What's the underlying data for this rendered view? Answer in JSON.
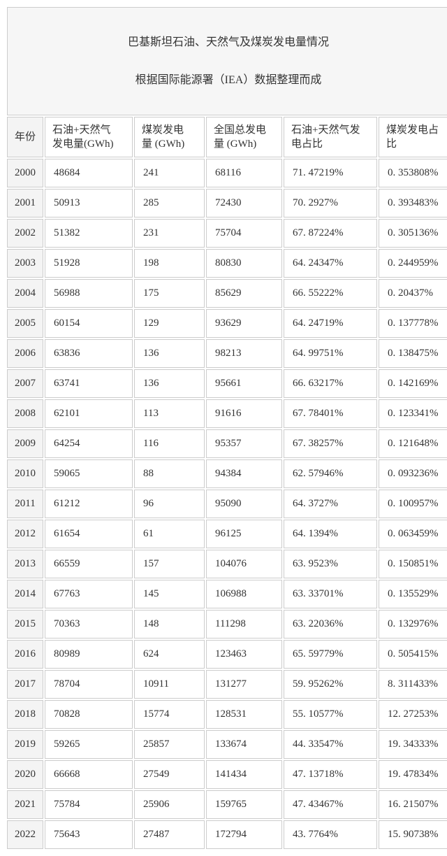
{
  "chart_data": {
    "type": "table",
    "title": "巴基斯坦石油、天然气及煤炭发电量情况",
    "subtitle": "根据国际能源署（IEA）数据整理而成",
    "columns": [
      "年份",
      "石油+天然气\n发电量(GWh)",
      "煤炭发电\n量 (GWh)",
      "全国总发电\n量 (GWh)",
      "石油+天然气发\n电占比",
      "煤炭发电占\n比"
    ],
    "rows": [
      [
        "2000",
        "48684",
        "241",
        "68116",
        "71. 47219%",
        "0. 353808%"
      ],
      [
        "2001",
        "50913",
        "285",
        "72430",
        "70. 2927%",
        "0. 393483%"
      ],
      [
        "2002",
        "51382",
        "231",
        "75704",
        "67. 87224%",
        "0. 305136%"
      ],
      [
        "2003",
        "51928",
        "198",
        "80830",
        "64. 24347%",
        "0. 244959%"
      ],
      [
        "2004",
        "56988",
        "175",
        "85629",
        "66. 55222%",
        "0. 20437%"
      ],
      [
        "2005",
        "60154",
        "129",
        "93629",
        "64. 24719%",
        "0. 137778%"
      ],
      [
        "2006",
        "63836",
        "136",
        "98213",
        "64. 99751%",
        "0. 138475%"
      ],
      [
        "2007",
        "63741",
        "136",
        "95661",
        "66. 63217%",
        "0. 142169%"
      ],
      [
        "2008",
        "62101",
        "113",
        "91616",
        "67. 78401%",
        "0. 123341%"
      ],
      [
        "2009",
        "64254",
        "116",
        "95357",
        "67. 38257%",
        "0. 121648%"
      ],
      [
        "2010",
        "59065",
        "88",
        "94384",
        "62. 57946%",
        "0. 093236%"
      ],
      [
        "2011",
        "61212",
        "96",
        "95090",
        "64. 3727%",
        "0. 100957%"
      ],
      [
        "2012",
        "61654",
        "61",
        "96125",
        "64. 1394%",
        "0. 063459%"
      ],
      [
        "2013",
        "66559",
        "157",
        "104076",
        "63. 9523%",
        "0. 150851%"
      ],
      [
        "2014",
        "67763",
        "145",
        "106988",
        "63. 33701%",
        "0. 135529%"
      ],
      [
        "2015",
        "70363",
        "148",
        "111298",
        "63. 22036%",
        "0. 132976%"
      ],
      [
        "2016",
        "80989",
        "624",
        "123463",
        "65. 59779%",
        "0. 505415%"
      ],
      [
        "2017",
        "78704",
        "10911",
        "131277",
        "59. 95262%",
        "8. 311433%"
      ],
      [
        "2018",
        "70828",
        "15774",
        "128531",
        "55. 10577%",
        "12. 27253%"
      ],
      [
        "2019",
        "59265",
        "25857",
        "133674",
        "44. 33547%",
        "19. 34333%"
      ],
      [
        "2020",
        "66668",
        "27549",
        "141434",
        "47. 13718%",
        "19. 47834%"
      ],
      [
        "2021",
        "75784",
        "25906",
        "159765",
        "47. 43467%",
        "16. 21507%"
      ],
      [
        "2022",
        "75643",
        "27487",
        "172794",
        "43. 7764%",
        "15. 90738%"
      ]
    ],
    "layout": {
      "grid": true,
      "shaded_first_column": true,
      "colors": {
        "border": "#cccccc",
        "shade": "#f4f4f4",
        "title_shade": "#f6f6f6",
        "text": "#333333",
        "cell_background": "#ffffff"
      }
    }
  }
}
